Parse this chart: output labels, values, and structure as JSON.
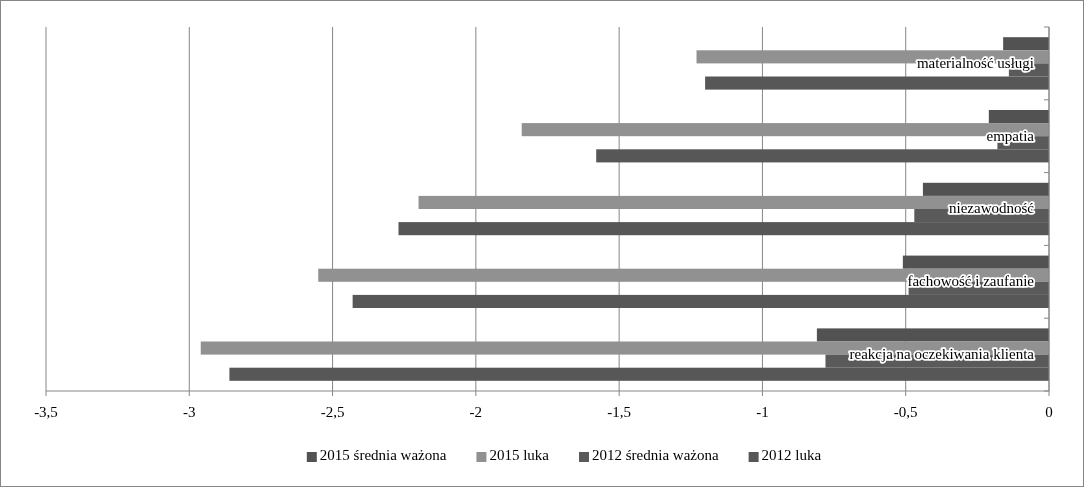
{
  "chart_data": {
    "type": "bar",
    "orientation": "horizontal",
    "categories": [
      "materialność usługi",
      "empatia",
      "niezawodność",
      "fachowość i zaufanie",
      "reakcja na oczekiwania klienta"
    ],
    "series": [
      {
        "name": "2015 średnia ważona",
        "color": "#525252",
        "values": [
          -0.16,
          -0.21,
          -0.44,
          -0.51,
          -0.81
        ]
      },
      {
        "name": "2015 luka",
        "color": "#919191",
        "values": [
          -1.23,
          -1.84,
          -2.2,
          -2.55,
          -2.96
        ]
      },
      {
        "name": "2012 średnia ważona",
        "color": "#5a5a5a",
        "values": [
          -0.14,
          -0.18,
          -0.47,
          -0.49,
          -0.78
        ]
      },
      {
        "name": "2012 luka",
        "color": "#575757",
        "values": [
          -1.2,
          -1.58,
          -2.27,
          -2.43,
          -2.86
        ]
      }
    ],
    "xlim": [
      -3.5,
      0
    ],
    "xticks": [
      {
        "value": -3.5,
        "label": "-3,5"
      },
      -3,
      {
        "value": -2.5,
        "label": "-2,5"
      },
      -2,
      {
        "value": -1.5,
        "label": "-1,5"
      },
      -1,
      {
        "value": -0.5,
        "label": "-0,5"
      },
      0
    ],
    "grid": "x",
    "legend": "bottom"
  }
}
